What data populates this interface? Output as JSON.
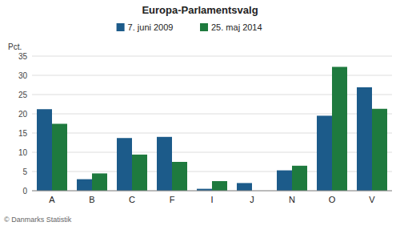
{
  "chart_data": {
    "type": "bar",
    "title": "Europa-Parlamentsvalg",
    "categories": [
      "A",
      "B",
      "C",
      "F",
      "I",
      "J",
      "N",
      "O",
      "V"
    ],
    "series": [
      {
        "name": "7. juni 2009",
        "color": "#1c5b8a",
        "values": [
          21.2,
          3.0,
          13.7,
          14.0,
          0.5,
          2.0,
          5.3,
          19.5,
          26.9
        ]
      },
      {
        "name": "25. maj 2014",
        "color": "#1e7a3e",
        "values": [
          17.4,
          4.5,
          9.4,
          7.5,
          2.5,
          0.0,
          6.5,
          32.2,
          21.3
        ]
      }
    ],
    "ylabel": "Pct.",
    "ylim": [
      0,
      35
    ],
    "yticks": [
      0,
      5,
      10,
      15,
      20,
      25,
      30,
      35
    ],
    "grid": true,
    "legend": "top",
    "annotations": [
      "© Danmarks Statistik"
    ]
  }
}
